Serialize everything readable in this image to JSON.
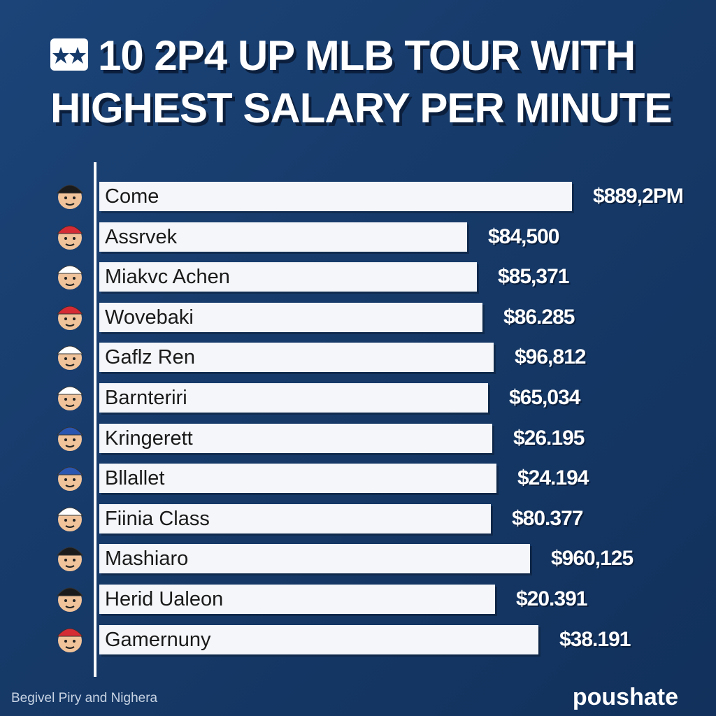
{
  "title_lines": [
    "10 2P4 UP MLB TOUR WITH",
    "HIGHEST SALARY PER MINUTE"
  ],
  "rows": [
    {
      "name": "Come",
      "value": "$889,2PM"
    },
    {
      "name": "Assrvek",
      "value": "$84,500"
    },
    {
      "name": "Miakvc Achen",
      "value": "$85,371"
    },
    {
      "name": "Wovebaki",
      "value": "$86.285"
    },
    {
      "name": "Gaflz Ren",
      "value": "$96,812"
    },
    {
      "name": "Barnteriri",
      "value": "$65,034"
    },
    {
      "name": "Kringerett",
      "value": "$26.195"
    },
    {
      "name": "Bllallet",
      "value": "$24.194"
    },
    {
      "name": "Fiinia Class",
      "value": "$80.377"
    },
    {
      "name": "Mashiaro",
      "value": "$960,125"
    },
    {
      "name": "Herid Ualeon",
      "value": "$20.391"
    },
    {
      "name": "Gamernuny",
      "value": "$38.191"
    }
  ],
  "footer": {
    "credit": "Begivel Piry and Nighera",
    "brand": "poushate"
  }
}
